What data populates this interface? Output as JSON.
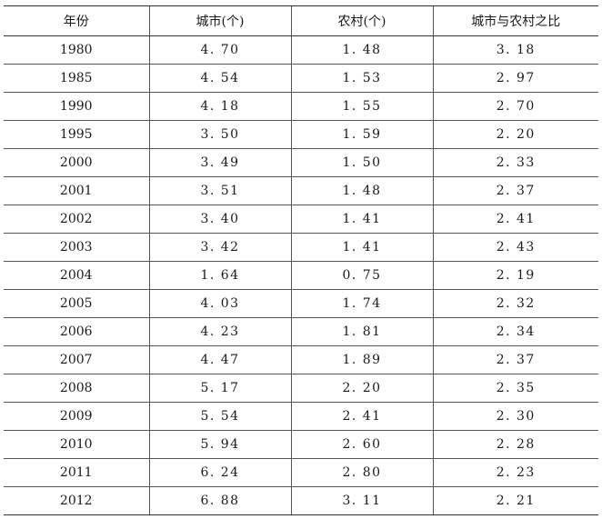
{
  "table": {
    "headers": [
      "年份",
      "城市(个)",
      "农村(个)",
      "城市与农村之比"
    ],
    "rows": [
      [
        "1980",
        "4. 70",
        "1. 48",
        "3. 18"
      ],
      [
        "1985",
        "4. 54",
        "1. 53",
        "2. 97"
      ],
      [
        "1990",
        "4. 18",
        "1. 55",
        "2. 70"
      ],
      [
        "1995",
        "3. 50",
        "1. 59",
        "2. 20"
      ],
      [
        "2000",
        "3. 49",
        "1. 50",
        "2. 33"
      ],
      [
        "2001",
        "3. 51",
        "1. 48",
        "2. 37"
      ],
      [
        "2002",
        "3. 40",
        "1. 41",
        "2. 41"
      ],
      [
        "2003",
        "3. 42",
        "1. 41",
        "2. 43"
      ],
      [
        "2004",
        "1. 64",
        "0. 75",
        "2. 19"
      ],
      [
        "2005",
        "4. 03",
        "1. 74",
        "2. 32"
      ],
      [
        "2006",
        "4. 23",
        "1. 81",
        "2. 34"
      ],
      [
        "2007",
        "4. 47",
        "1. 89",
        "2. 37"
      ],
      [
        "2008",
        "5. 17",
        "2. 20",
        "2. 35"
      ],
      [
        "2009",
        "5. 54",
        "2. 41",
        "2. 30"
      ],
      [
        "2010",
        "5. 94",
        "2. 60",
        "2. 28"
      ],
      [
        "2011",
        "6. 24",
        "2. 80",
        "2. 23"
      ],
      [
        "2012",
        "6. 88",
        "3. 11",
        "2. 21"
      ]
    ]
  }
}
